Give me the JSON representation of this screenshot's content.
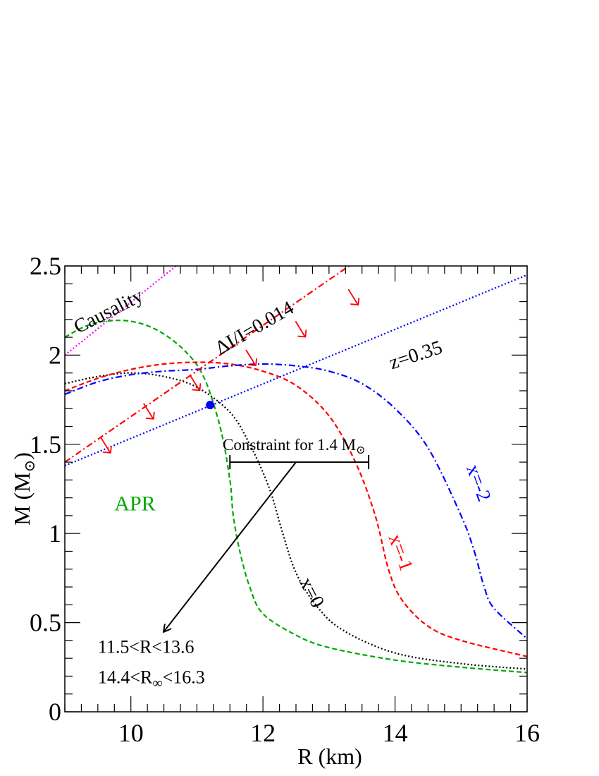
{
  "chart_data": {
    "type": "line",
    "xlabel": "R (km)",
    "ylabel": "M (M",
    "ylabel_sub": "⊙",
    "ylabel_close": ")",
    "xlim": [
      9,
      16
    ],
    "ylim": [
      0,
      2.5
    ],
    "xticks": [
      10,
      12,
      14,
      16
    ],
    "yticks": [
      0,
      0.5,
      1,
      1.5,
      2,
      2.5
    ],
    "ytick_labels": [
      "0",
      "0.5",
      "1",
      "1.5",
      "2",
      "2.5"
    ],
    "grid": false,
    "series": [
      {
        "name": "APR",
        "color": "#00aa00",
        "dash": "dashed",
        "x": [
          9.0,
          9.3,
          9.6,
          10.0,
          10.4,
          10.8,
          11.1,
          11.35,
          11.5,
          11.55,
          11.65,
          11.8,
          12.0,
          12.5,
          13.0,
          14.0,
          15.0,
          16.0
        ],
        "y": [
          2.1,
          2.16,
          2.19,
          2.19,
          2.14,
          2.03,
          1.88,
          1.6,
          1.3,
          1.1,
          0.9,
          0.7,
          0.55,
          0.43,
          0.36,
          0.29,
          0.25,
          0.22
        ]
      },
      {
        "name": "x=0",
        "color": "#000000",
        "dash": "dotted",
        "x": [
          9.0,
          9.5,
          10.0,
          10.5,
          11.0,
          11.5,
          11.8,
          12.1,
          12.3,
          12.5,
          12.8,
          13.2,
          14.0,
          15.0,
          16.0
        ],
        "y": [
          1.84,
          1.88,
          1.9,
          1.88,
          1.82,
          1.68,
          1.5,
          1.25,
          1.0,
          0.78,
          0.6,
          0.46,
          0.33,
          0.27,
          0.24
        ]
      },
      {
        "name": "x=-1",
        "color": "#ff0000",
        "dash": "dashed",
        "x": [
          9.0,
          9.5,
          10.0,
          10.5,
          11.0,
          11.5,
          12.0,
          12.5,
          13.0,
          13.4,
          13.7,
          13.9,
          14.1,
          14.5,
          15.0,
          16.0
        ],
        "y": [
          1.8,
          1.87,
          1.92,
          1.95,
          1.96,
          1.95,
          1.91,
          1.83,
          1.66,
          1.4,
          1.1,
          0.8,
          0.63,
          0.48,
          0.4,
          0.31
        ]
      },
      {
        "name": "x=-2",
        "color": "#0000ff",
        "dash": "dashdot",
        "x": [
          9.0,
          9.5,
          10.0,
          10.5,
          11.0,
          11.5,
          12.0,
          12.5,
          13.0,
          13.5,
          14.0,
          14.5,
          15.0,
          15.2,
          15.35,
          15.5,
          16.0
        ],
        "y": [
          1.78,
          1.85,
          1.89,
          1.91,
          1.92,
          1.94,
          1.95,
          1.94,
          1.91,
          1.84,
          1.7,
          1.48,
          1.1,
          0.9,
          0.7,
          0.58,
          0.41
        ]
      },
      {
        "name": "Causality",
        "color": "#ff00ff",
        "dash": "dotted",
        "x": [
          9.0,
          12.2
        ],
        "y": [
          2.0,
          2.95
        ]
      },
      {
        "name": "ΔI/I=0.014",
        "color": "#ff0000",
        "dash": "dashdot",
        "x": [
          9.0,
          13.5
        ],
        "y": [
          1.4,
          2.55
        ]
      },
      {
        "name": "z=0.35",
        "color": "#0000ff",
        "dash": "dotted",
        "x": [
          9.0,
          16.0
        ],
        "y": [
          1.38,
          2.45
        ]
      }
    ],
    "arrow_markers": {
      "color": "#ff0000",
      "points": [
        [
          9.65,
          1.48
        ],
        [
          10.3,
          1.67
        ],
        [
          11.0,
          1.83
        ],
        [
          11.85,
          1.97
        ],
        [
          12.6,
          2.13
        ],
        [
          13.4,
          2.31
        ]
      ]
    },
    "point": {
      "x": 11.2,
      "y": 1.72,
      "color": "#0000ff"
    },
    "constraint": {
      "label": "Constraint for 1.4 M",
      "label_sub": "⊙",
      "x_low": 11.5,
      "x_high": 13.6,
      "y": 1.4,
      "arrow_from": [
        12.5,
        1.4
      ],
      "arrow_to": [
        10.5,
        0.45
      ]
    },
    "annotations": [
      {
        "text": "Causality",
        "color": "#000000",
        "x": 9.2,
        "y": 2.12,
        "angle": -27,
        "size": 28
      },
      {
        "text": "ΔI/I=0.014",
        "color": "#000000",
        "x": 11.35,
        "y": 2.0,
        "angle": -30,
        "size": 28
      },
      {
        "text": "z=0.35",
        "color": "#000000",
        "x": 13.95,
        "y": 1.92,
        "angle": -18,
        "size": 28
      },
      {
        "text": "APR",
        "color": "#00aa00",
        "x": 9.75,
        "y": 1.13,
        "angle": 0,
        "size": 30
      },
      {
        "text": "x=0",
        "color": "#000000",
        "x": 12.55,
        "y": 0.73,
        "angle": 63,
        "size": 28
      },
      {
        "text": "x=-1",
        "color": "#ff0000",
        "x": 13.9,
        "y": 0.98,
        "angle": 70,
        "size": 28
      },
      {
        "text": "x=-2",
        "color": "#0000ff",
        "x": 15.08,
        "y": 1.37,
        "angle": 70,
        "size": 28
      },
      {
        "text": "11.5<R<13.6",
        "color": "#000000",
        "x": 9.5,
        "y": 0.33,
        "angle": 0,
        "size": 26
      }
    ],
    "rinf_label": {
      "text_a": "14.4<R",
      "sub": "∞",
      "text_b": "<16.3",
      "color": "#000000",
      "x": 9.5,
      "y": 0.16
    }
  }
}
